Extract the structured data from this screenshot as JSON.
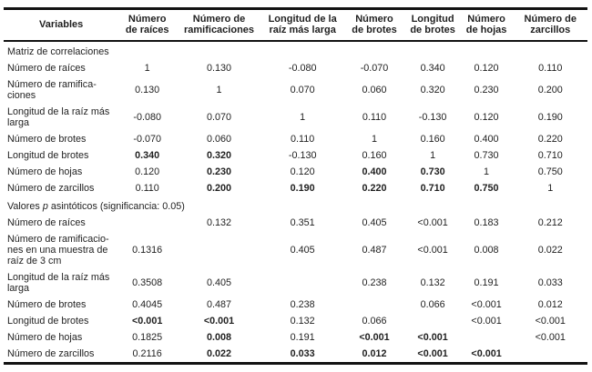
{
  "page": {
    "background_color": "#ffffff",
    "text_color": "#1f1f1f",
    "rule_color": "#121212"
  },
  "table": {
    "header": {
      "columns": [
        {
          "label": "Variables"
        },
        {
          "label": "Número\nde raíces"
        },
        {
          "label": "Número de\nramificaciones"
        },
        {
          "label": "Longitud de la\nraíz más larga"
        },
        {
          "label": "Número\nde brotes"
        },
        {
          "label": "Longitud\nde brotes"
        },
        {
          "label": "Número\nde hojas"
        },
        {
          "label": "Número de\nzarcillos"
        }
      ]
    },
    "sections": [
      {
        "title_parts": [
          {
            "text": "Matriz de correlaciones",
            "italic": false
          }
        ],
        "rows": [
          {
            "label": "Número de raíces",
            "cells": [
              {
                "v": "1"
              },
              {
                "v": "0.130"
              },
              {
                "v": "-0.080"
              },
              {
                "v": "-0.070"
              },
              {
                "v": "0.340"
              },
              {
                "v": "0.120"
              },
              {
                "v": "0.110"
              }
            ]
          },
          {
            "label": "Número de ramifica-\nciones",
            "cells": [
              {
                "v": "0.130"
              },
              {
                "v": "1"
              },
              {
                "v": "0.070"
              },
              {
                "v": "0.060"
              },
              {
                "v": "0.320"
              },
              {
                "v": "0.230"
              },
              {
                "v": "0.200"
              }
            ]
          },
          {
            "label": "Longitud de la raíz más\nlarga",
            "cells": [
              {
                "v": "-0.080"
              },
              {
                "v": "0.070"
              },
              {
                "v": "1"
              },
              {
                "v": "0.110"
              },
              {
                "v": "-0.130"
              },
              {
                "v": "0.120"
              },
              {
                "v": "0.190"
              }
            ]
          },
          {
            "label": "Número de brotes",
            "cells": [
              {
                "v": "-0.070"
              },
              {
                "v": "0.060"
              },
              {
                "v": "0.110"
              },
              {
                "v": "1"
              },
              {
                "v": "0.160"
              },
              {
                "v": "0.400"
              },
              {
                "v": "0.220"
              }
            ]
          },
          {
            "label": "Longitud de brotes",
            "cells": [
              {
                "v": "0.340",
                "b": true
              },
              {
                "v": "0.320",
                "b": true
              },
              {
                "v": "-0.130"
              },
              {
                "v": "0.160"
              },
              {
                "v": "1"
              },
              {
                "v": "0.730"
              },
              {
                "v": "0.710"
              }
            ]
          },
          {
            "label": "Número de hojas",
            "cells": [
              {
                "v": "0.120"
              },
              {
                "v": "0.230",
                "b": true
              },
              {
                "v": "0.120"
              },
              {
                "v": "0.400",
                "b": true
              },
              {
                "v": "0.730",
                "b": true
              },
              {
                "v": "1"
              },
              {
                "v": "0.750"
              }
            ]
          },
          {
            "label": "Número de zarcillos",
            "cells": [
              {
                "v": "0.110"
              },
              {
                "v": "0.200",
                "b": true
              },
              {
                "v": "0.190",
                "b": true
              },
              {
                "v": "0.220",
                "b": true
              },
              {
                "v": "0.710",
                "b": true
              },
              {
                "v": "0.750",
                "b": true
              },
              {
                "v": "1"
              }
            ]
          }
        ]
      },
      {
        "title_parts": [
          {
            "text": "Valores ",
            "italic": false
          },
          {
            "text": "p",
            "italic": true
          },
          {
            "text": " asintóticos (significancia: 0.05)",
            "italic": false
          }
        ],
        "rows": [
          {
            "label": "Número de raíces",
            "cells": [
              {
                "v": ""
              },
              {
                "v": "0.132"
              },
              {
                "v": "0.351"
              },
              {
                "v": "0.405"
              },
              {
                "v": "<0.001"
              },
              {
                "v": "0.183"
              },
              {
                "v": "0.212"
              }
            ]
          },
          {
            "label": "Número de ramificacio-\nnes en una muestra de\nraíz de 3 cm",
            "cells": [
              {
                "v": "0.1316"
              },
              {
                "v": ""
              },
              {
                "v": "0.405"
              },
              {
                "v": "0.487"
              },
              {
                "v": "<0.001"
              },
              {
                "v": "0.008"
              },
              {
                "v": "0.022"
              }
            ]
          },
          {
            "label": "Longitud de la raíz más\nlarga",
            "cells": [
              {
                "v": "0.3508"
              },
              {
                "v": "0.405"
              },
              {
                "v": ""
              },
              {
                "v": "0.238"
              },
              {
                "v": "0.132"
              },
              {
                "v": "0.191"
              },
              {
                "v": "0.033"
              }
            ]
          },
          {
            "label": "Número de brotes",
            "cells": [
              {
                "v": "0.4045"
              },
              {
                "v": "0.487"
              },
              {
                "v": "0.238"
              },
              {
                "v": ""
              },
              {
                "v": "0.066"
              },
              {
                "v": "<0.001"
              },
              {
                "v": "0.012"
              }
            ]
          },
          {
            "label": "Longitud de brotes",
            "cells": [
              {
                "v": "<0.001",
                "b": true
              },
              {
                "v": "<0.001",
                "b": true
              },
              {
                "v": "0.132"
              },
              {
                "v": "0.066"
              },
              {
                "v": ""
              },
              {
                "v": "<0.001"
              },
              {
                "v": "<0.001"
              }
            ]
          },
          {
            "label": "Número de hojas",
            "cells": [
              {
                "v": "0.1825"
              },
              {
                "v": "0.008",
                "b": true
              },
              {
                "v": "0.191"
              },
              {
                "v": "<0.001",
                "b": true
              },
              {
                "v": "<0.001",
                "b": true
              },
              {
                "v": ""
              },
              {
                "v": "<0.001"
              }
            ]
          },
          {
            "label": "Número de zarcillos",
            "cells": [
              {
                "v": "0.2116"
              },
              {
                "v": "0.022",
                "b": true
              },
              {
                "v": "0.033",
                "b": true
              },
              {
                "v": "0.012",
                "b": true
              },
              {
                "v": "<0.001",
                "b": true
              },
              {
                "v": "<0.001",
                "b": true
              },
              {
                "v": ""
              }
            ]
          }
        ]
      }
    ]
  }
}
